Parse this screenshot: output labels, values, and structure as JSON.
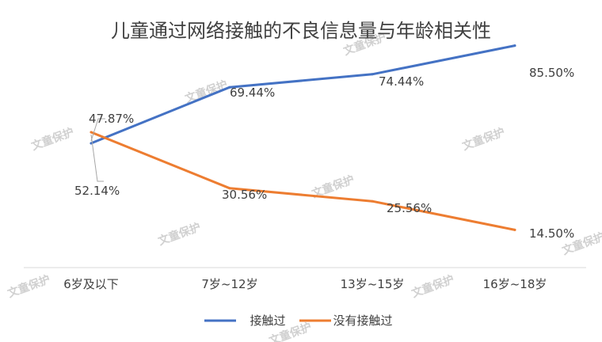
{
  "chart_data": {
    "type": "line",
    "title": "儿童通过网络接触的不良信息量与年龄相关性",
    "categories": [
      "6岁及以下",
      "7岁~12岁",
      "13岁~15岁",
      "16岁~18岁"
    ],
    "series": [
      {
        "name": "接触过",
        "values": [
          47.87,
          69.44,
          74.44,
          85.5
        ],
        "labels": [
          "47.87%",
          "69.44%",
          "74.44%",
          "85.50%"
        ],
        "color": "#4472c4"
      },
      {
        "name": "没有接触过",
        "values": [
          52.14,
          30.56,
          25.56,
          14.5
        ],
        "labels": [
          "52.14%",
          "30.56%",
          "25.56%",
          "14.50%"
        ],
        "color": "#ed7d31"
      }
    ],
    "ylim": [
      0,
      100
    ],
    "grid": false,
    "legend_position": "bottom",
    "watermark": "文童保护"
  }
}
